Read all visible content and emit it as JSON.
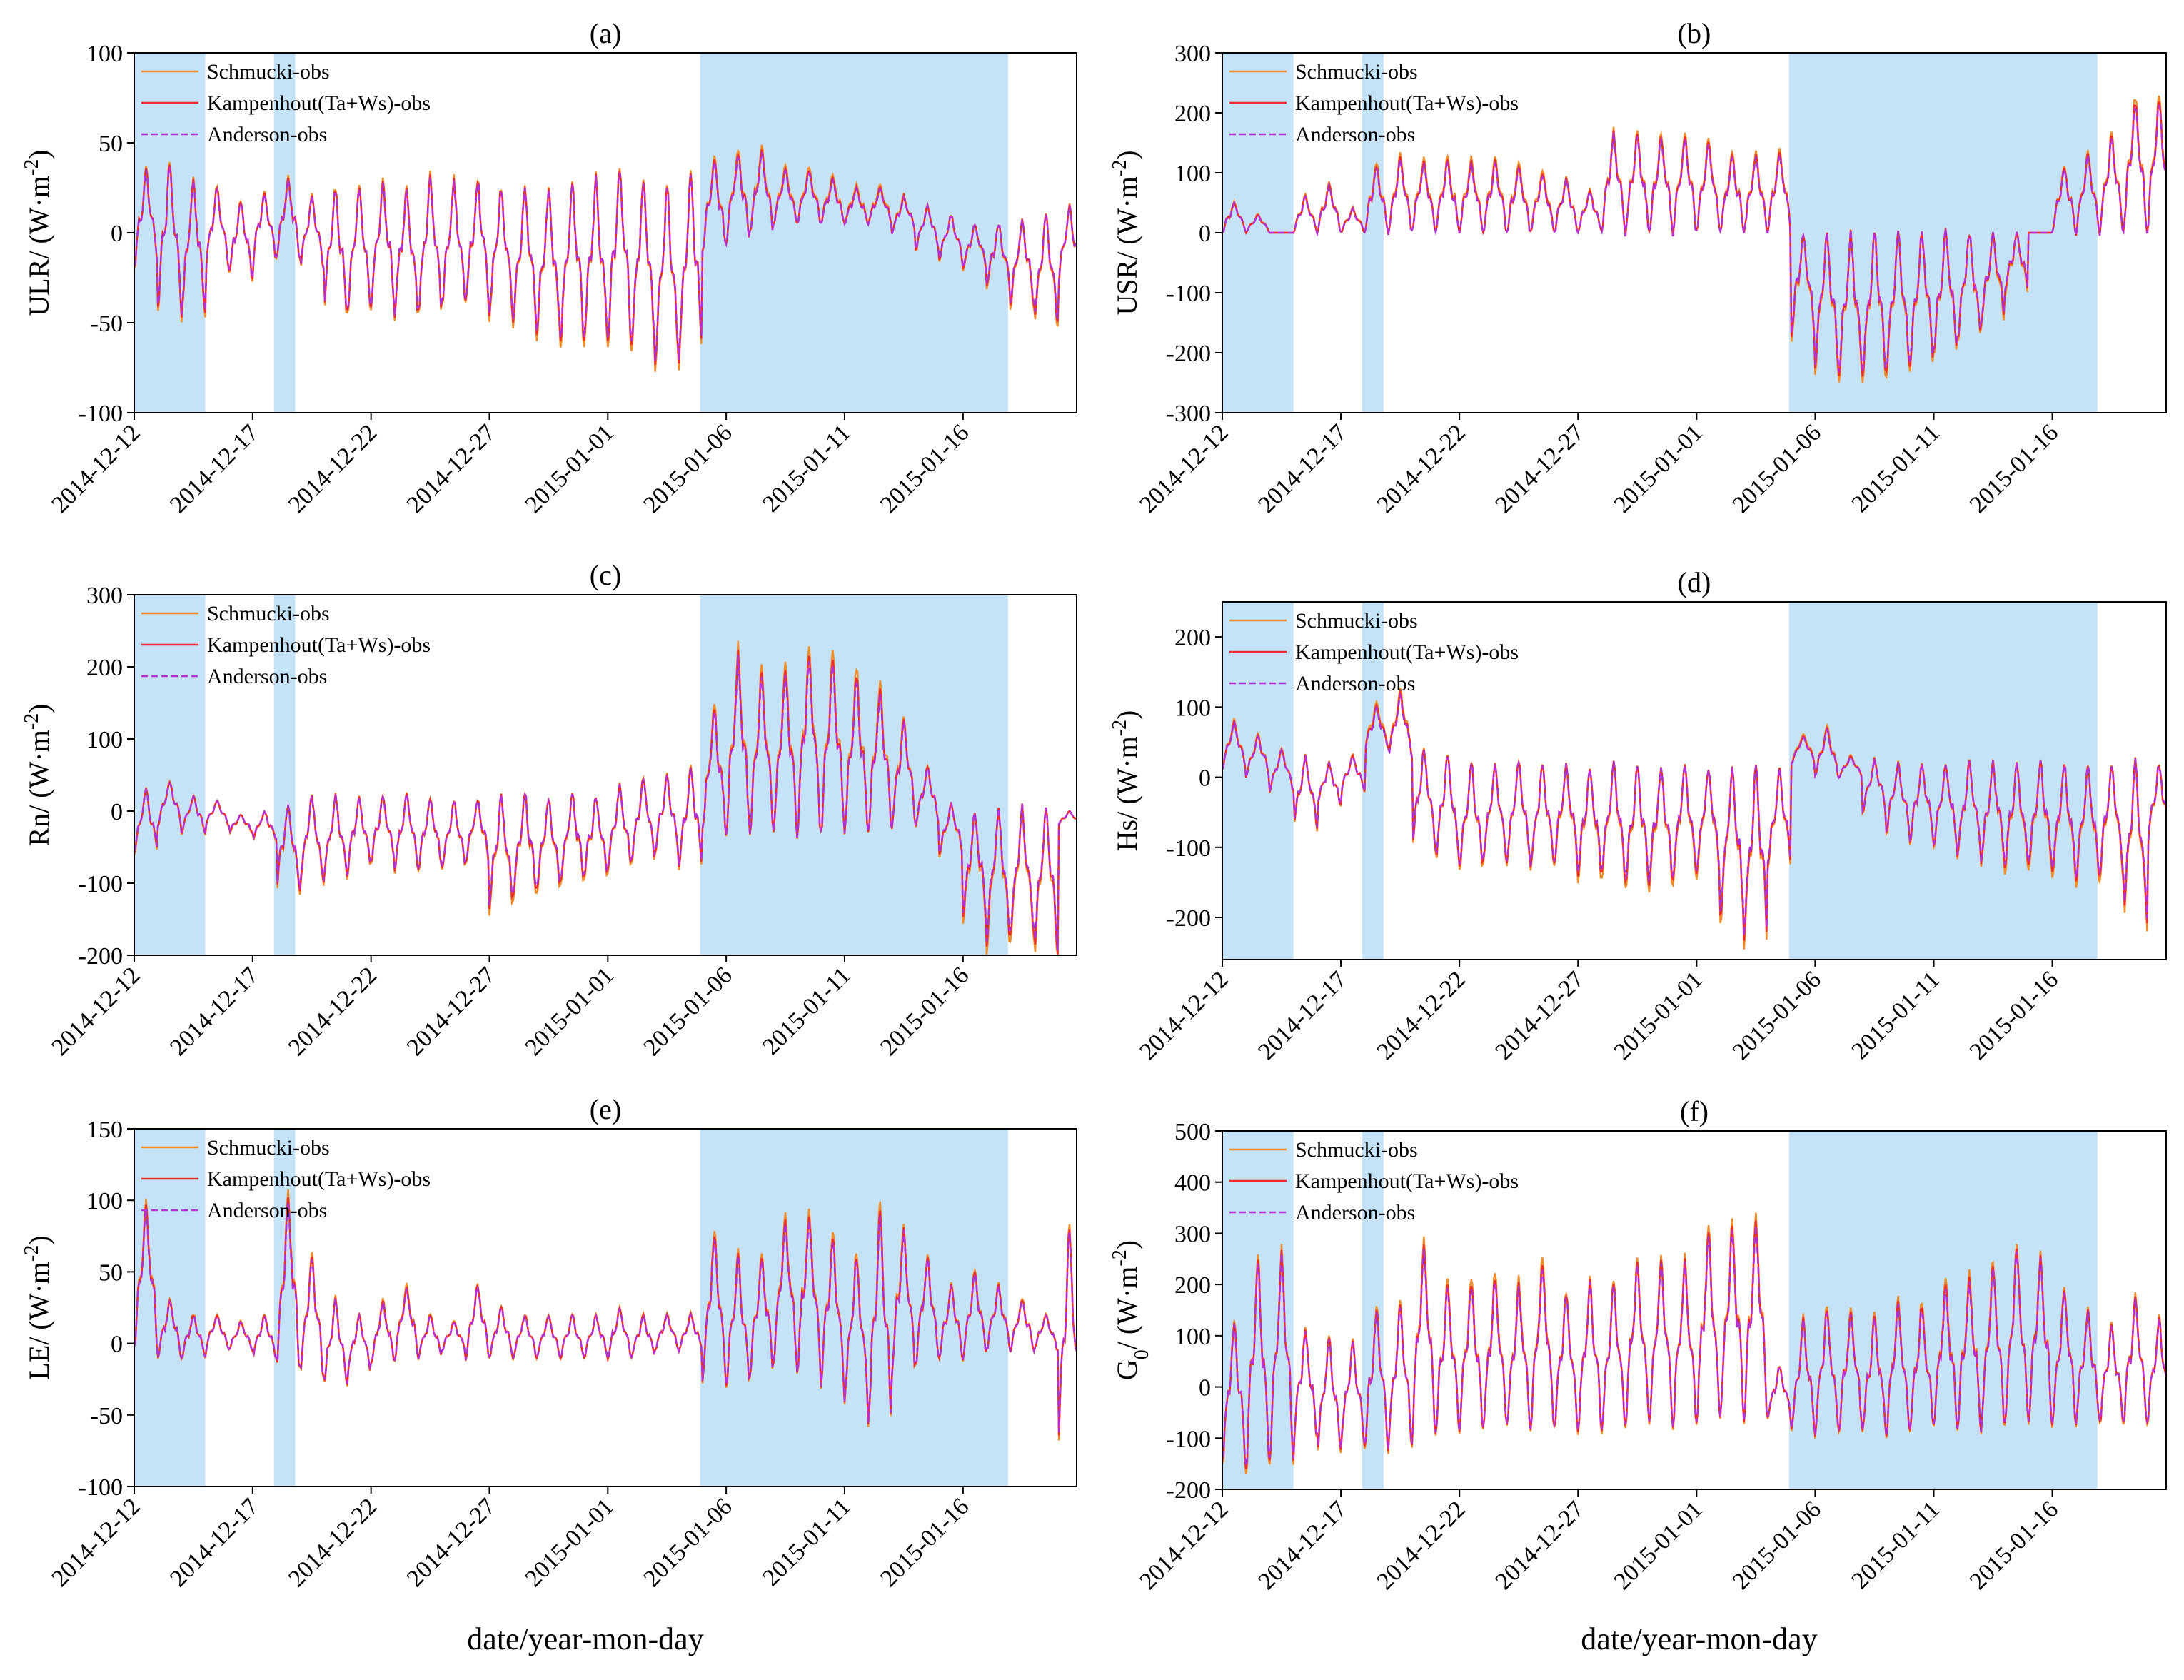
{
  "figure": {
    "xlabel": "date/year-mon-day",
    "x_date_ticks": [
      "2014-12-12",
      "2014-12-17",
      "2014-12-22",
      "2014-12-27",
      "2015-01-01",
      "2015-01-06",
      "2015-01-11",
      "2015-01-16"
    ],
    "x_range_days": [
      0,
      39.8
    ],
    "shaded_day_ranges": [
      [
        0,
        3
      ],
      [
        5.9,
        6.8
      ],
      [
        23.9,
        36.9
      ]
    ],
    "colors": {
      "shade": "#c5e3f8",
      "Schmucki-obs": "#f28c28",
      "Kampenhout(Ta+Ws)-obs": "#ee2b2b",
      "Anderson-obs": "#b52fd6"
    }
  },
  "chart_data": [
    {
      "type": "line",
      "panel": "(a)",
      "ylabel_main": "ULR/ (W·m",
      "ylabel_sup": "-2",
      "ylabel_end": ")",
      "ylim": [
        -100,
        100
      ],
      "yticks": [
        -100,
        -50,
        0,
        50,
        100
      ],
      "legend": [
        "Schmucki-obs",
        "Kampenhout(Ta+Ws)-obs",
        "Anderson-obs"
      ],
      "daily": {
        "x": [
          0,
          1,
          2,
          3,
          4,
          5,
          6,
          7,
          8,
          9,
          10,
          11,
          12,
          13,
          14,
          15,
          16,
          17,
          18,
          19,
          20,
          21,
          22,
          23,
          24,
          25,
          26,
          27,
          28,
          29,
          30,
          31,
          32,
          33,
          34,
          35,
          36,
          37,
          38,
          39
        ],
        "peak_max": [
          35,
          38,
          30,
          25,
          18,
          22,
          30,
          20,
          25,
          25,
          28,
          25,
          30,
          28,
          30,
          25,
          25,
          22,
          28,
          30,
          35,
          30,
          25,
          35,
          40,
          45,
          45,
          35,
          35,
          30,
          25,
          25,
          20,
          15,
          10,
          5,
          5,
          8,
          10,
          15
        ],
        "trough_min": [
          -20,
          -40,
          -45,
          -20,
          -25,
          -15,
          -15,
          -20,
          -45,
          -45,
          -40,
          -45,
          -45,
          -40,
          -40,
          -45,
          -50,
          -55,
          -60,
          -60,
          -60,
          -65,
          -70,
          -70,
          -10,
          -5,
          0,
          5,
          5,
          5,
          5,
          5,
          0,
          -10,
          -15,
          -20,
          -30,
          -40,
          -50,
          -30
        ]
      }
    },
    {
      "type": "line",
      "panel": "(b)",
      "ylabel_main": "USR/ (W·m",
      "ylabel_sup": "-2",
      "ylabel_end": ")",
      "ylim": [
        -300,
        300
      ],
      "yticks": [
        -300,
        -200,
        -100,
        0,
        100,
        200,
        300
      ],
      "legend": [
        "Schmucki-obs",
        "Kampenhout(Ta+Ws)-obs",
        "Anderson-obs"
      ],
      "daily": {
        "x": [
          0,
          1,
          2,
          3,
          4,
          5,
          6,
          7,
          8,
          9,
          10,
          11,
          12,
          13,
          14,
          15,
          16,
          17,
          18,
          19,
          20,
          21,
          22,
          23,
          24,
          25,
          26,
          27,
          28,
          29,
          30,
          31,
          32,
          33,
          34,
          35,
          36,
          37,
          38,
          39
        ],
        "peak_max": [
          50,
          30,
          0,
          60,
          80,
          40,
          110,
          125,
          120,
          120,
          120,
          120,
          110,
          100,
          90,
          70,
          165,
          165,
          160,
          160,
          150,
          130,
          130,
          135,
          0,
          0,
          0,
          0,
          0,
          0,
          0,
          0,
          0,
          0,
          0,
          110,
          130,
          160,
          220,
          225
        ],
        "trough_min": [
          0,
          0,
          0,
          0,
          0,
          0,
          0,
          0,
          0,
          0,
          0,
          0,
          0,
          0,
          0,
          0,
          0,
          0,
          0,
          0,
          0,
          0,
          0,
          0,
          -170,
          -230,
          -240,
          -240,
          -230,
          -220,
          -200,
          -180,
          -150,
          -100,
          0,
          0,
          0,
          0,
          0,
          0
        ]
      }
    },
    {
      "type": "line",
      "panel": "(c)",
      "ylabel_main": "Rn/ (W·m",
      "ylabel_sup": "-2",
      "ylabel_end": ")",
      "ylim": [
        -200,
        300
      ],
      "yticks": [
        -200,
        -100,
        0,
        100,
        200,
        300
      ],
      "legend": [
        "Schmucki-obs",
        "Kampenhout(Ta+Ws)-obs",
        "Anderson-obs"
      ],
      "daily": {
        "x": [
          0,
          1,
          2,
          3,
          4,
          5,
          6,
          7,
          8,
          9,
          10,
          11,
          12,
          13,
          14,
          15,
          16,
          17,
          18,
          19,
          20,
          21,
          22,
          23,
          24,
          25,
          26,
          27,
          28,
          29,
          30,
          31,
          32,
          33,
          34,
          35,
          36,
          37,
          38,
          39
        ],
        "peak_max": [
          30,
          40,
          20,
          15,
          -5,
          0,
          10,
          20,
          20,
          20,
          20,
          25,
          20,
          15,
          15,
          20,
          25,
          20,
          25,
          20,
          35,
          45,
          50,
          60,
          140,
          215,
          190,
          200,
          220,
          210,
          190,
          170,
          130,
          60,
          10,
          0,
          5,
          5,
          5,
          0
        ],
        "trough_min": [
          -60,
          -20,
          -30,
          -20,
          -30,
          -40,
          -110,
          -100,
          -90,
          -80,
          -70,
          -80,
          -80,
          -80,
          -70,
          -130,
          -120,
          -110,
          -100,
          -90,
          -80,
          -70,
          -60,
          -80,
          -30,
          -30,
          -30,
          -30,
          -30,
          -30,
          -30,
          -30,
          -20,
          -20,
          -60,
          -150,
          -185,
          -175,
          -195,
          -20
        ]
      }
    },
    {
      "type": "line",
      "panel": "(d)",
      "ylabel_main": "Hs/ (W·m",
      "ylabel_sup": "-2",
      "ylabel_end": ")",
      "ylim": [
        -260,
        250
      ],
      "yticks": [
        -200,
        -100,
        0,
        100,
        200
      ],
      "legend": [
        "Schmucki-obs",
        "Kampenhout(Ta+Ws)-obs",
        "Anderson-obs"
      ],
      "daily": {
        "x": [
          0,
          1,
          2,
          3,
          4,
          5,
          6,
          7,
          8,
          9,
          10,
          11,
          12,
          13,
          14,
          15,
          16,
          17,
          18,
          19,
          20,
          21,
          22,
          23,
          24,
          25,
          26,
          27,
          28,
          29,
          30,
          31,
          32,
          33,
          34,
          35,
          36,
          37,
          38,
          39
        ],
        "peak_max": [
          80,
          60,
          40,
          30,
          20,
          30,
          100,
          120,
          40,
          30,
          20,
          20,
          20,
          20,
          15,
          15,
          20,
          15,
          15,
          15,
          15,
          15,
          15,
          10,
          60,
          70,
          30,
          25,
          20,
          20,
          20,
          20,
          20,
          20,
          20,
          20,
          20,
          20,
          20,
          20
        ],
        "trough_min": [
          10,
          0,
          -20,
          -70,
          -40,
          -20,
          40,
          30,
          -100,
          -120,
          -130,
          -120,
          -120,
          -130,
          -120,
          -140,
          -140,
          -150,
          -150,
          -140,
          -140,
          -200,
          -230,
          -130,
          20,
          0,
          0,
          -50,
          -80,
          -90,
          -100,
          -110,
          -120,
          -130,
          -130,
          -140,
          -150,
          -140,
          -200,
          -100
        ]
      }
    },
    {
      "type": "line",
      "panel": "(e)",
      "ylabel_main": "LE/ (W·m",
      "ylabel_sup": "-2",
      "ylabel_end": ")",
      "ylim": [
        -100,
        150
      ],
      "yticks": [
        -100,
        -50,
        0,
        50,
        100,
        150
      ],
      "legend": [
        "Schmucki-obs",
        "Kampenhout(Ta+Ws)-obs",
        "Anderson-obs"
      ],
      "daily": {
        "x": [
          0,
          1,
          2,
          3,
          4,
          5,
          6,
          7,
          8,
          9,
          10,
          11,
          12,
          13,
          14,
          15,
          16,
          17,
          18,
          19,
          20,
          21,
          22,
          23,
          24,
          25,
          26,
          27,
          28,
          29,
          30,
          31,
          32,
          33,
          34,
          35,
          36,
          37,
          38,
          39
        ],
        "peak_max": [
          95,
          30,
          20,
          20,
          15,
          20,
          100,
          60,
          30,
          20,
          30,
          40,
          20,
          15,
          40,
          25,
          20,
          20,
          20,
          20,
          25,
          20,
          20,
          20,
          75,
          60,
          60,
          85,
          90,
          75,
          60,
          95,
          80,
          60,
          40,
          50,
          40,
          30,
          20,
          80
        ],
        "trough_min": [
          -5,
          -10,
          -10,
          -5,
          -5,
          -10,
          -20,
          -25,
          -30,
          -20,
          -15,
          -10,
          -10,
          -5,
          -10,
          -10,
          -10,
          -10,
          -10,
          -10,
          -10,
          -10,
          -5,
          -5,
          -25,
          -30,
          -20,
          -15,
          -20,
          -30,
          -40,
          -60,
          -20,
          -15,
          -10,
          -10,
          -5,
          -5,
          -5,
          -80
        ]
      }
    },
    {
      "type": "line",
      "panel": "(f)",
      "ylabel_main": "G",
      "ylabel_sub": "0",
      "ylabel_end": "/ (W·m",
      "ylabel_sup": "-2",
      "ylabel_close": ")",
      "ylim": [
        -200,
        500
      ],
      "yticks": [
        -200,
        -100,
        0,
        100,
        200,
        300,
        400,
        500
      ],
      "legend": [
        "Schmucki-obs",
        "Kampenhout(Ta+Ws)-obs",
        "Anderson-obs"
      ],
      "daily": {
        "x": [
          0,
          1,
          2,
          3,
          4,
          5,
          6,
          7,
          8,
          9,
          10,
          11,
          12,
          13,
          14,
          15,
          16,
          17,
          18,
          19,
          20,
          21,
          22,
          23,
          24,
          25,
          26,
          27,
          28,
          29,
          30,
          31,
          32,
          33,
          34,
          35,
          36,
          37,
          38,
          39
        ],
        "peak_max": [
          120,
          250,
          260,
          110,
          100,
          90,
          150,
          160,
          280,
          200,
          200,
          210,
          200,
          240,
          180,
          200,
          200,
          240,
          250,
          240,
          300,
          310,
          320,
          40,
          130,
          150,
          150,
          140,
          160,
          160,
          200,
          210,
          240,
          270,
          250,
          190,
          150,
          120,
          170,
          130
        ],
        "trough_min": [
          -150,
          -160,
          -140,
          -100,
          -130,
          -110,
          -120,
          -110,
          -90,
          -80,
          -80,
          -80,
          -80,
          -80,
          -80,
          -80,
          -80,
          -70,
          -70,
          -70,
          -70,
          -60,
          -60,
          -60,
          -90,
          -90,
          -90,
          -90,
          -90,
          -90,
          -80,
          -80,
          -80,
          -80,
          -80,
          -70,
          -70,
          -70,
          -70,
          -70
        ]
      }
    }
  ]
}
